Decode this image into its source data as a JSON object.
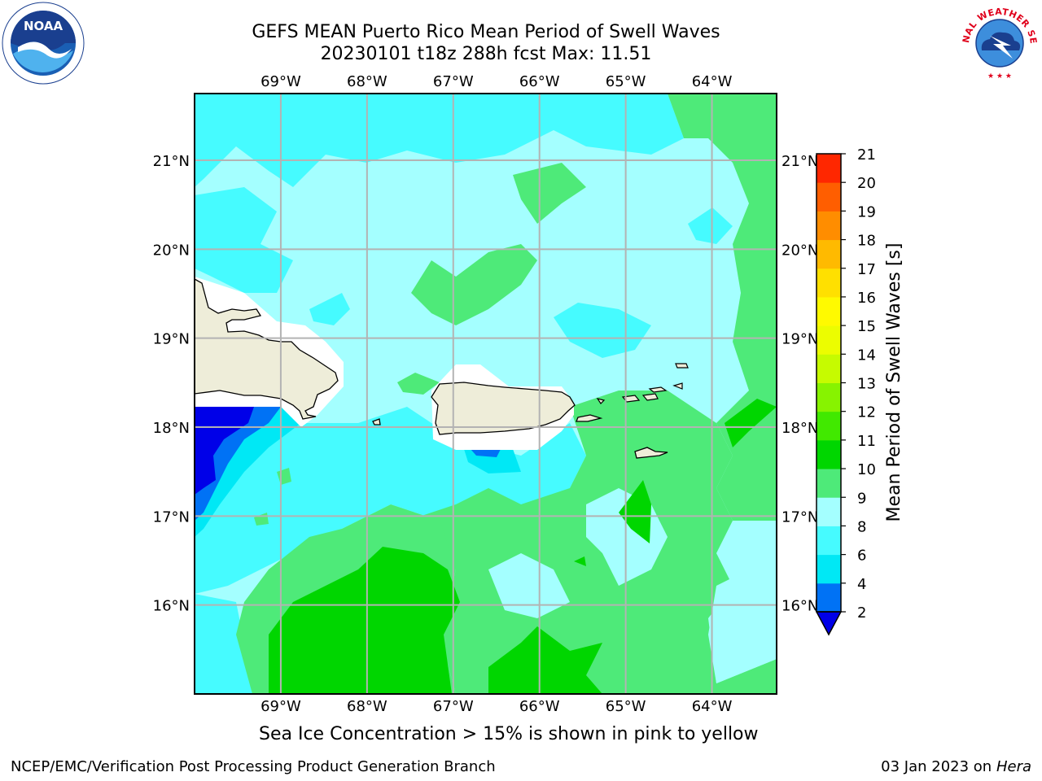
{
  "title": {
    "line1": "GEFS MEAN Puerto Rico Mean Period of Swell Waves",
    "line2": "20230101 t18z 288h fcst   Max: 11.51"
  },
  "map": {
    "lon_range": [
      -70.0,
      -63.25
    ],
    "lat_range": [
      15.0,
      21.75
    ],
    "lon_ticks": [
      {
        "value": -69,
        "label": "69°W"
      },
      {
        "value": -68,
        "label": "68°W"
      },
      {
        "value": -67,
        "label": "67°W"
      },
      {
        "value": -66,
        "label": "66°W"
      },
      {
        "value": -65,
        "label": "65°W"
      },
      {
        "value": -64,
        "label": "64°W"
      }
    ],
    "lat_ticks": [
      {
        "value": 21,
        "label": "21°N"
      },
      {
        "value": 20,
        "label": "20°N"
      },
      {
        "value": 19,
        "label": "19°N"
      },
      {
        "value": 18,
        "label": "18°N"
      },
      {
        "value": 17,
        "label": "17°N"
      },
      {
        "value": 16,
        "label": "16°N"
      }
    ],
    "grid": true,
    "land_color": "#eeedd9",
    "coast_color": "#000000"
  },
  "colorbar": {
    "label": "Mean Period of Swell Waves [s]",
    "ticks": [
      "2",
      "4",
      "6",
      "8",
      "9",
      "10",
      "11",
      "12",
      "13",
      "14",
      "15",
      "16",
      "17",
      "18",
      "19",
      "20",
      "21"
    ],
    "colors": [
      "#0072f5",
      "#00e8f5",
      "#46fbff",
      "#a4ffff",
      "#4eea79",
      "#00d600",
      "#41e900",
      "#87f300",
      "#c6fb00",
      "#ecfd00",
      "#fffa00",
      "#ffe000",
      "#ffba00",
      "#ff8d00",
      "#ff5e00",
      "#ff2700"
    ],
    "under_color": "#0000e8",
    "extend": "min"
  },
  "colors": {
    "c2_4": "#0072f5",
    "c4_6": "#00e8f5",
    "c6_8": "#46fbff",
    "c8_9": "#a4ffff",
    "c9_10": "#4eea79",
    "c10_11": "#00d600",
    "under": "#0000e8"
  },
  "caption": "Sea Ice Concentration > 15% is shown in pink to yellow",
  "footer": {
    "left": "NCEP/EMC/Verification Post Processing Product Generation Branch",
    "date": "03 Jan 2023 on ",
    "host": "Hera"
  },
  "logos": {
    "noaa_text": "NOAA",
    "nws_text": "NATIONAL WEATHER SERVICE",
    "noaa_icon": "noaa-logo-icon",
    "nws_icon": "nws-logo-icon"
  }
}
